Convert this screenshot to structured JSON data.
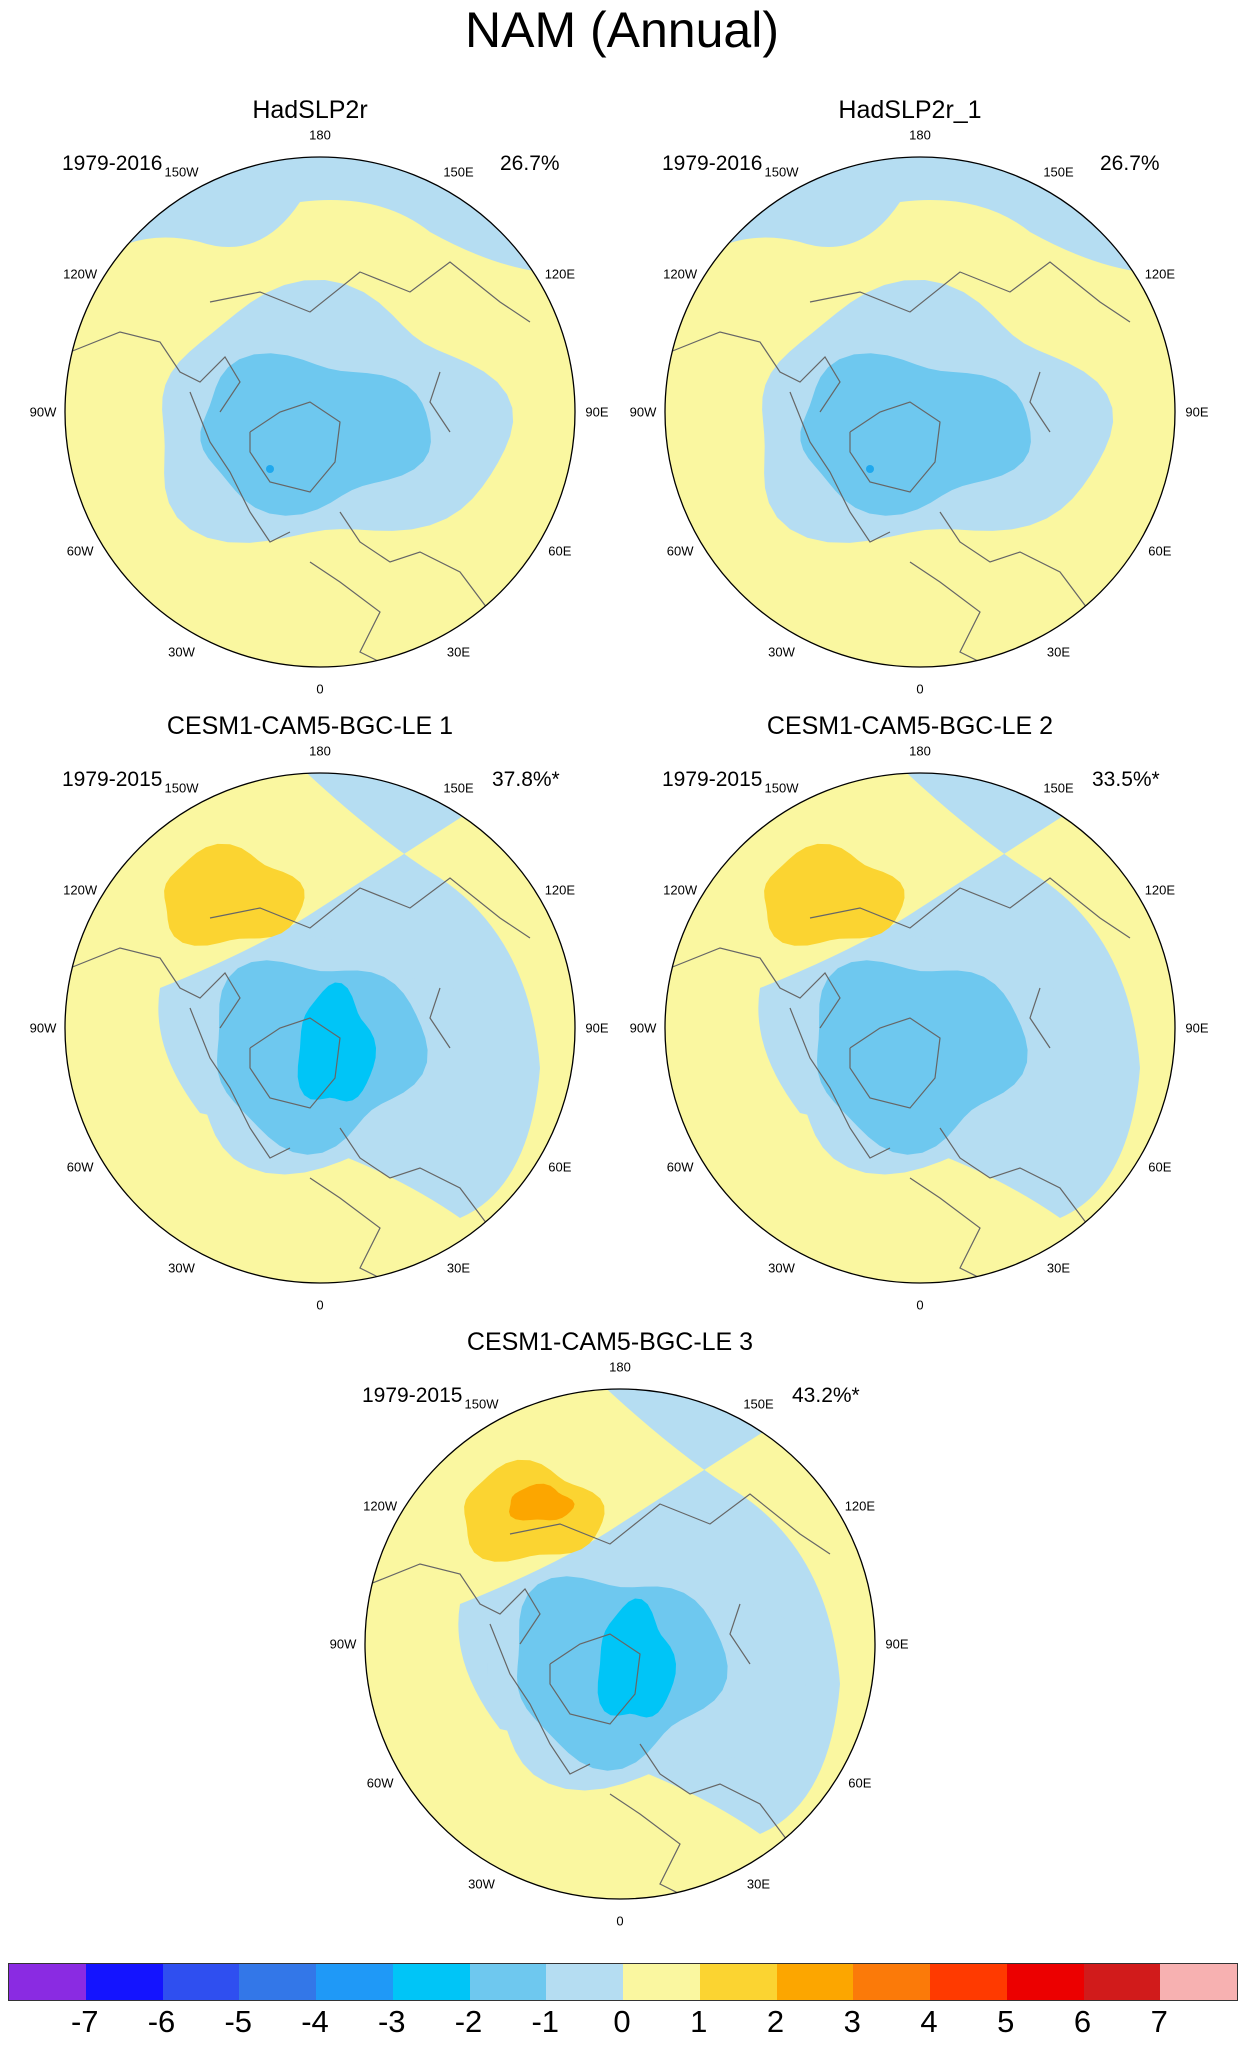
{
  "title": "NAM (Annual)",
  "panels": [
    {
      "title": "HadSLP2r",
      "period": "1979-2016",
      "pct": "26.7%",
      "variant": "obs"
    },
    {
      "title": "HadSLP2r_1",
      "period": "1979-2016",
      "pct": "26.7%",
      "variant": "obs"
    },
    {
      "title": "CESM1-CAM5-BGC-LE 1",
      "period": "1979-2015",
      "pct": "37.8%*",
      "variant": "m1"
    },
    {
      "title": "CESM1-CAM5-BGC-LE 2",
      "period": "1979-2015",
      "pct": "33.5%*",
      "variant": "m2"
    },
    {
      "title": "CESM1-CAM5-BGC-LE 3",
      "period": "1979-2015",
      "pct": "43.2%*",
      "variant": "m3"
    }
  ],
  "lon_labels": {
    "n180": "180",
    "n150w": "150W",
    "n150e": "150E",
    "n120w": "120W",
    "n120e": "120E",
    "n90w": "90W",
    "n90e": "90E",
    "n60w": "60W",
    "n60e": "60E",
    "n30w": "30W",
    "n30e": "30E",
    "n0": "0"
  },
  "colorbar": {
    "colors": [
      "#8a2be2",
      "#1414ff",
      "#2f4ff0",
      "#3377e8",
      "#1f99f7",
      "#00c5f7",
      "#6ec8ef",
      "#b5ddf2",
      "#faf7a0",
      "#fbd431",
      "#fca600",
      "#fb7a09",
      "#ff3a00",
      "#ec0000",
      "#d11b1b",
      "#f7b1b1"
    ],
    "labels": [
      "-7",
      "-6",
      "-5",
      "-4",
      "-3",
      "-2",
      "-1",
      "0",
      "1",
      "2",
      "3",
      "4",
      "5",
      "6",
      "7"
    ]
  }
}
